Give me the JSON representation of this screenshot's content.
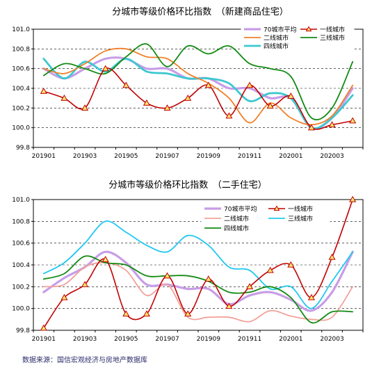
{
  "source_note": "数据来源：国信宏观经济与房地产数据库",
  "chart_data": [
    {
      "type": "line",
      "title": "分城市等级价格环比指数　（新建商品住宅）",
      "x": [
        "201901",
        "201902",
        "201903",
        "201904",
        "201905",
        "201906",
        "201907",
        "201908",
        "201909",
        "201910",
        "201911",
        "201912",
        "202001",
        "202002",
        "202003",
        "202004"
      ],
      "x_tick_labels": [
        "201901",
        "201903",
        "201905",
        "201907",
        "201909",
        "201911",
        "202001",
        "202003"
      ],
      "ylim": [
        99.8,
        101.0
      ],
      "y_ticks": [
        "99.8",
        "100.0",
        "100.2",
        "100.4",
        "100.6",
        "100.8",
        "101.0"
      ],
      "grid": "dashed horizontal",
      "legend_position": "top-right",
      "legend_columns": 2,
      "series": [
        {
          "name": "70城市平均",
          "color": "#c89de8",
          "width": 3.2,
          "marker": "none",
          "values": [
            100.6,
            100.5,
            100.6,
            100.7,
            100.7,
            100.6,
            100.6,
            100.5,
            100.5,
            100.4,
            100.4,
            100.3,
            100.3,
            100.0,
            100.1,
            100.4
          ]
        },
        {
          "name": "一线城市",
          "color": "#c00000",
          "width": 1.6,
          "marker": "triangle",
          "marker_fill": "#ffe36e",
          "values": [
            100.37,
            100.3,
            100.2,
            100.6,
            100.43,
            100.25,
            100.2,
            100.3,
            100.43,
            100.12,
            100.43,
            100.22,
            100.32,
            100.0,
            100.03,
            100.07
          ]
        },
        {
          "name": "二线城市",
          "color": "#f0802a",
          "width": 1.8,
          "marker": "none",
          "values": [
            100.6,
            100.55,
            100.65,
            100.78,
            100.8,
            100.72,
            100.7,
            100.55,
            100.45,
            100.3,
            100.05,
            100.25,
            100.1,
            100.03,
            100.12,
            100.43
          ]
        },
        {
          "name": "三线城市",
          "color": "#138a13",
          "width": 1.8,
          "marker": "none",
          "values": [
            100.53,
            100.65,
            100.6,
            100.55,
            100.72,
            100.85,
            100.62,
            100.83,
            100.75,
            100.83,
            100.65,
            100.6,
            100.52,
            100.1,
            100.2,
            100.67
          ]
        },
        {
          "name": "四线城市",
          "color": "#3cc8d0",
          "width": 2.8,
          "marker": "none",
          "values": [
            100.7,
            100.5,
            100.67,
            100.57,
            100.7,
            100.57,
            100.55,
            100.5,
            100.5,
            100.45,
            100.27,
            100.35,
            100.3,
            100.0,
            100.1,
            100.33
          ]
        }
      ]
    },
    {
      "type": "line",
      "title": "分城市等级价格环比指数　（二手住宅）",
      "x": [
        "201901",
        "201902",
        "201903",
        "201904",
        "201905",
        "201906",
        "201907",
        "201908",
        "201909",
        "201910",
        "201911",
        "201912",
        "202001",
        "202002",
        "202003",
        "202004"
      ],
      "x_tick_labels": [
        "201901",
        "201903",
        "201905",
        "201907",
        "201909",
        "201911",
        "202001",
        "202003"
      ],
      "ylim": [
        99.8,
        101.0
      ],
      "y_ticks": [
        "99.8",
        "100.0",
        "100.2",
        "100.4",
        "100.6",
        "100.8",
        "101.0"
      ],
      "grid": "dashed horizontal",
      "legend_position": "top-right",
      "legend_columns": 2,
      "series": [
        {
          "name": "70城市平均",
          "color": "#c89de8",
          "width": 3.2,
          "marker": "none",
          "values": [
            100.15,
            100.28,
            100.38,
            100.52,
            100.42,
            100.22,
            100.22,
            100.18,
            100.18,
            100.04,
            100.12,
            100.15,
            100.08,
            99.98,
            100.15,
            100.52
          ]
        },
        {
          "name": "一线城市",
          "color": "#c00000",
          "width": 1.6,
          "marker": "triangle",
          "marker_fill": "#ffe36e",
          "values": [
            99.82,
            100.1,
            100.22,
            100.45,
            99.95,
            99.95,
            100.3,
            99.95,
            100.27,
            100.02,
            100.2,
            100.35,
            100.4,
            100.1,
            100.47,
            101.0
          ]
        },
        {
          "name": "二线城市",
          "color": "#f2a29a",
          "width": 1.8,
          "marker": "none",
          "values": [
            100.2,
            100.22,
            100.38,
            100.42,
            100.35,
            100.12,
            100.22,
            99.92,
            99.92,
            99.92,
            99.88,
            99.98,
            99.93,
            99.9,
            99.92,
            100.2
          ]
        },
        {
          "name": "三线城市",
          "color": "#1ec8f0",
          "width": 1.8,
          "marker": "none",
          "values": [
            100.32,
            100.42,
            100.6,
            100.8,
            100.7,
            100.58,
            100.52,
            100.67,
            100.58,
            100.38,
            100.35,
            100.18,
            100.2,
            100.0,
            100.25,
            100.52
          ]
        },
        {
          "name": "四线城市",
          "color": "#138a13",
          "width": 1.8,
          "marker": "none",
          "values": [
            100.27,
            100.32,
            100.48,
            100.42,
            100.4,
            100.3,
            100.3,
            100.3,
            100.25,
            100.15,
            100.15,
            100.2,
            100.1,
            99.87,
            99.97,
            99.97
          ]
        }
      ]
    }
  ]
}
